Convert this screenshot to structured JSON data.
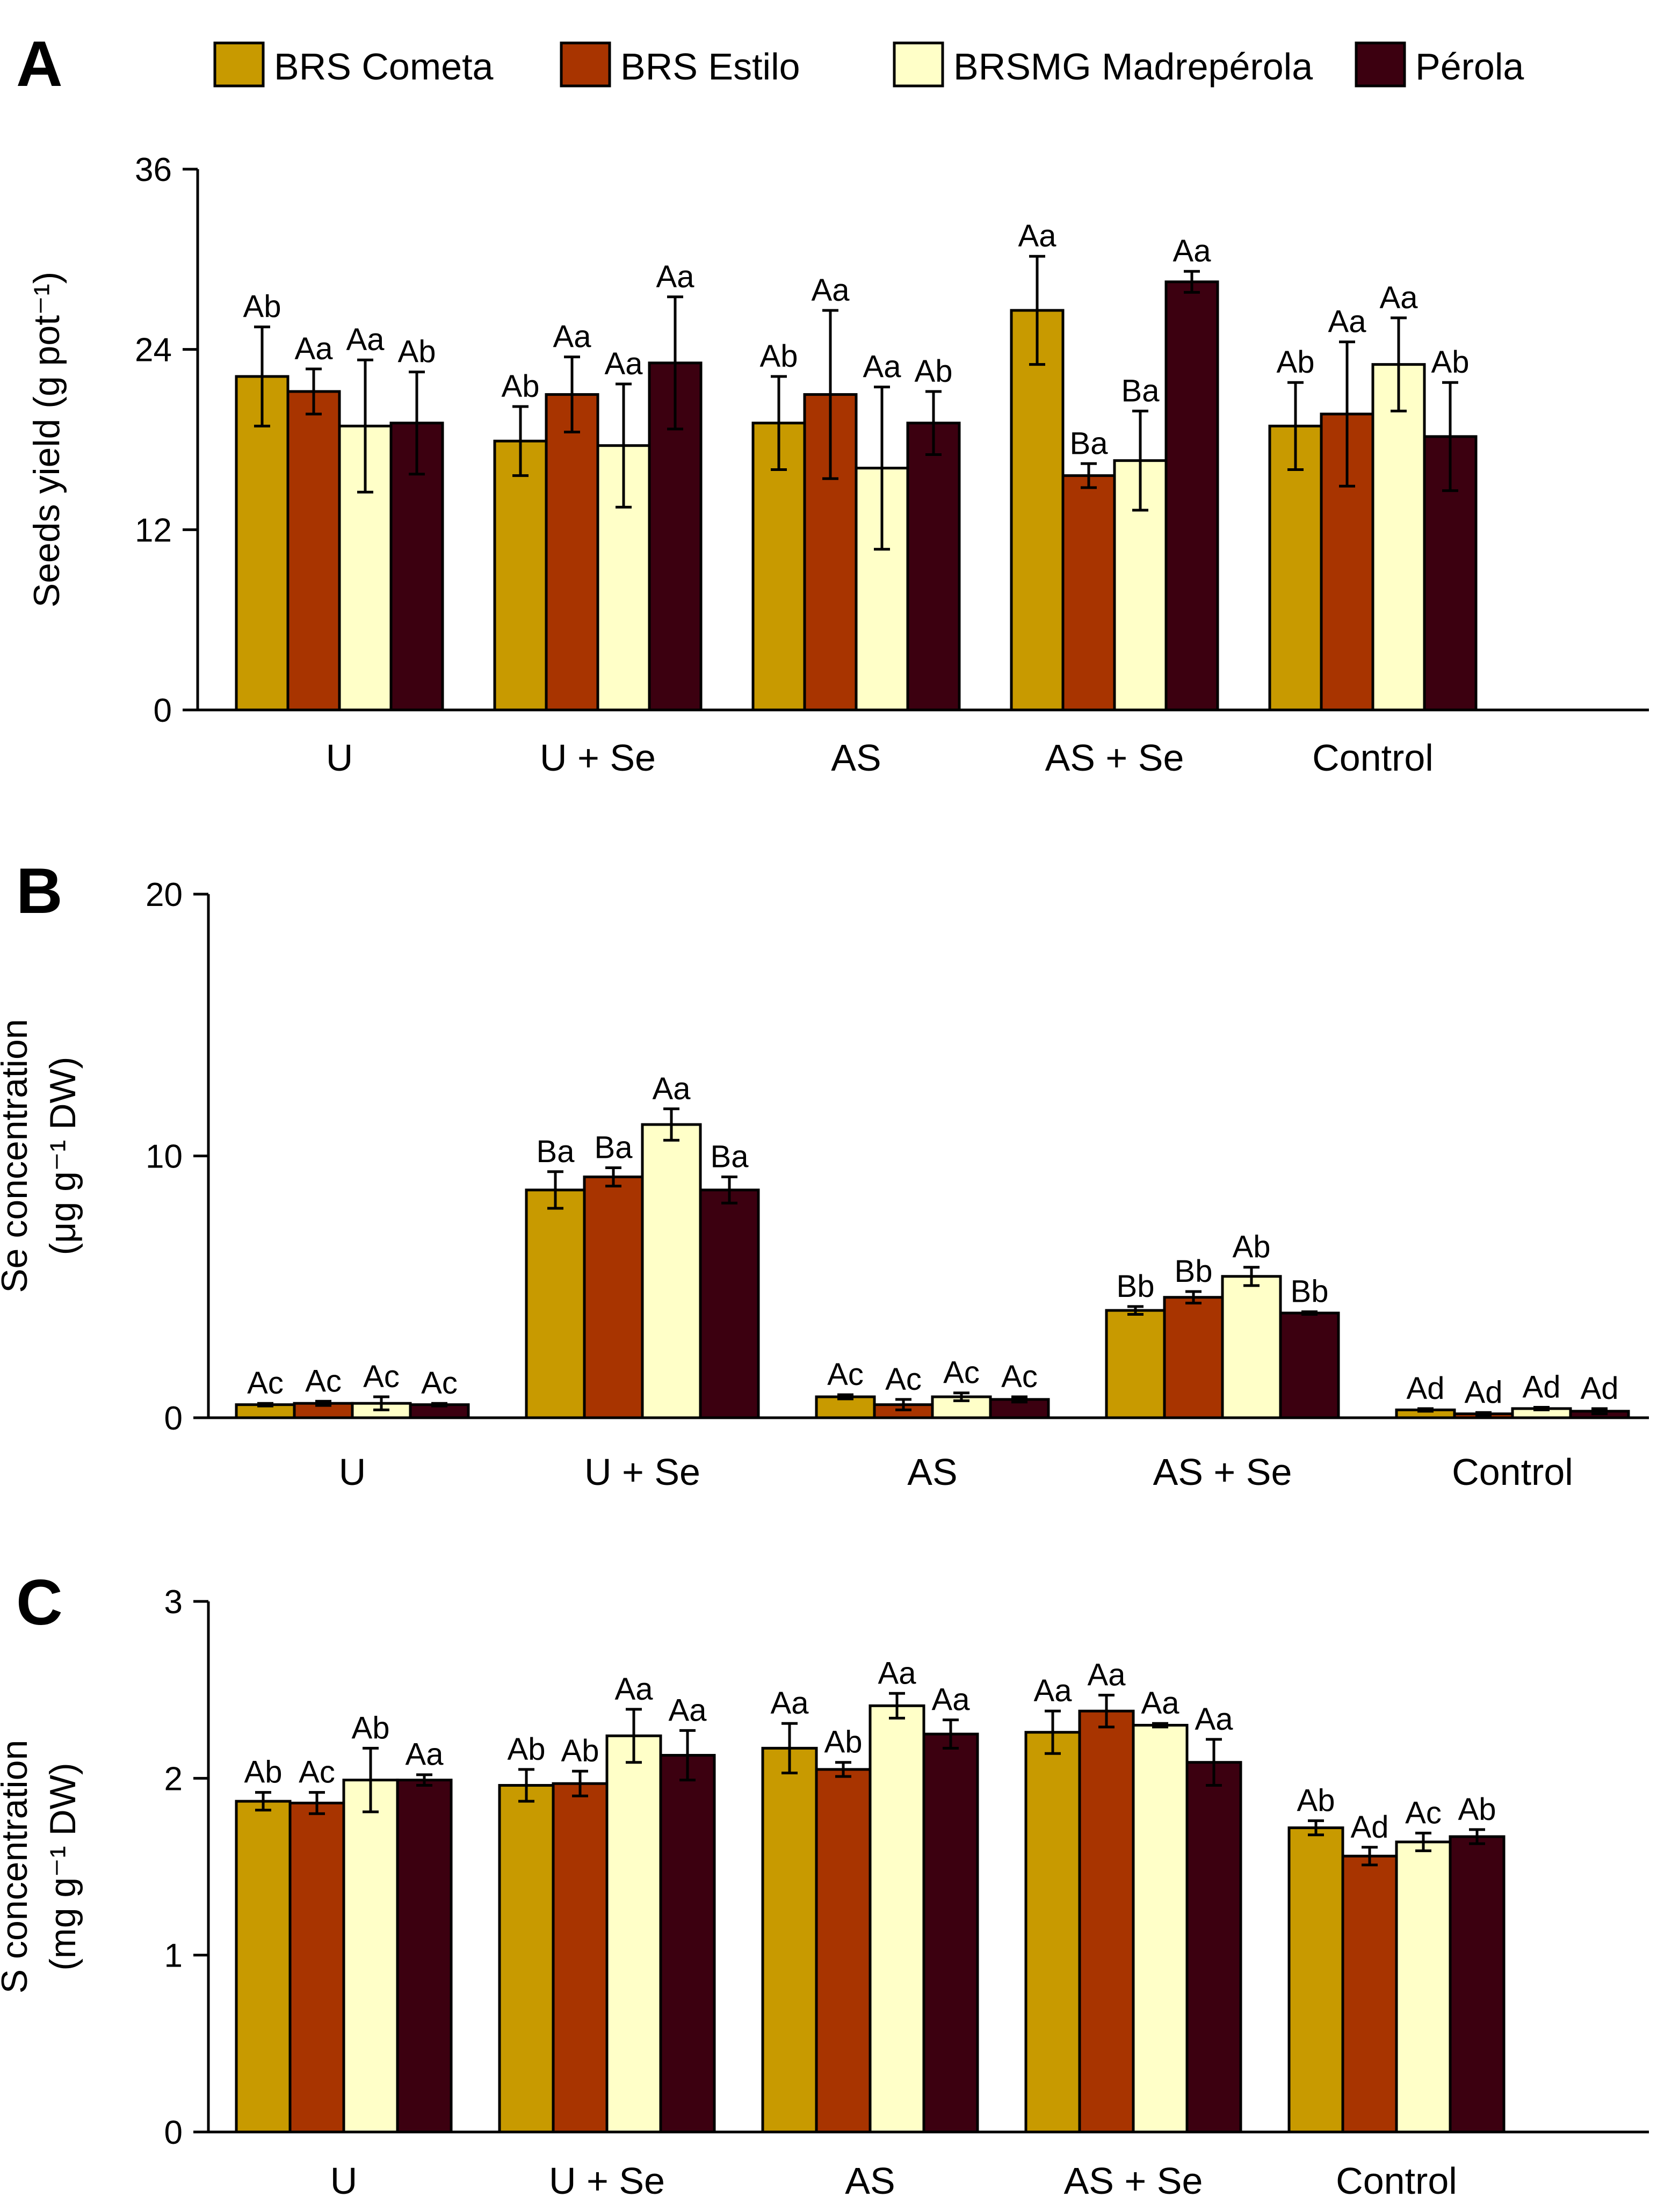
{
  "colors": {
    "BRS Cometa": "#c89a00",
    "BRS Estilo": "#a83400",
    "BRSMG Madrepérola": "#ffffc8",
    "Pérola": "#3c0010"
  },
  "legend": [
    "BRS Cometa",
    "BRS Estilo",
    "BRSMG Madrepérola",
    "Pérola"
  ],
  "chart_data": [
    {
      "type": "bar",
      "panel": "A",
      "ylabel": "Seeds yield (g pot⁻¹)",
      "ylim": [
        0,
        36
      ],
      "yticks": [
        0,
        12,
        24,
        36
      ],
      "categories": [
        "U",
        "U + Se",
        "AS",
        "AS + Se",
        "Control"
      ],
      "series": [
        {
          "name": "BRS Cometa",
          "values": [
            22.2,
            17.9,
            19.1,
            26.6,
            18.9
          ],
          "errors": [
            3.3,
            2.3,
            3.1,
            3.6,
            2.9
          ],
          "labels": [
            "Ab",
            "Ab",
            "Ab",
            "Aa",
            "Ab"
          ]
        },
        {
          "name": "BRS Estilo",
          "values": [
            21.2,
            21.0,
            21.0,
            15.6,
            19.7
          ],
          "errors": [
            1.5,
            2.5,
            5.6,
            0.8,
            4.8
          ],
          "labels": [
            "Aa",
            "Aa",
            "Aa",
            "Ba",
            "Aa"
          ]
        },
        {
          "name": "BRSMG Madrepérola",
          "values": [
            18.9,
            17.6,
            16.1,
            16.6,
            23.0
          ],
          "errors": [
            4.4,
            4.1,
            5.4,
            3.3,
            3.1
          ],
          "labels": [
            "Aa",
            "Aa",
            "Aa",
            "Ba",
            "Aa"
          ]
        },
        {
          "name": "Pérola",
          "values": [
            19.1,
            23.1,
            19.1,
            28.5,
            18.2
          ],
          "errors": [
            3.4,
            4.4,
            2.1,
            0.7,
            3.6
          ],
          "labels": [
            "Ab",
            "Aa",
            "Ab",
            "Aa",
            "Ab"
          ]
        }
      ]
    },
    {
      "type": "bar",
      "panel": "B",
      "ylabel": "Se concentration (μg g⁻¹ DW)",
      "ylim": [
        0,
        20
      ],
      "yticks": [
        0,
        10,
        20
      ],
      "categories": [
        "U",
        "U + Se",
        "AS",
        "AS + Se",
        "Control"
      ],
      "series": [
        {
          "name": "BRS Cometa",
          "values": [
            0.5,
            8.7,
            0.8,
            4.1,
            0.3
          ],
          "errors": [
            0.05,
            0.7,
            0.08,
            0.15,
            0.05
          ],
          "labels": [
            "Ac",
            "Ba",
            "Ac",
            "Bb",
            "Ad"
          ]
        },
        {
          "name": "BRS Estilo",
          "values": [
            0.55,
            9.2,
            0.5,
            4.6,
            0.15
          ],
          "errors": [
            0.08,
            0.35,
            0.2,
            0.22,
            0.05
          ],
          "labels": [
            "Ac",
            "Ba",
            "Ac",
            "Bb",
            "Ad"
          ]
        },
        {
          "name": "BRSMG Madrepérola",
          "values": [
            0.55,
            11.2,
            0.8,
            5.4,
            0.35
          ],
          "errors": [
            0.25,
            0.6,
            0.15,
            0.35,
            0.05
          ],
          "labels": [
            "Ac",
            "Aa",
            "Ac",
            "Ab",
            "Ad"
          ]
        },
        {
          "name": "Pérola",
          "values": [
            0.5,
            8.7,
            0.7,
            4.0,
            0.25
          ],
          "errors": [
            0.05,
            0.5,
            0.1,
            0.05,
            0.1
          ],
          "labels": [
            "Ac",
            "Ba",
            "Ac",
            "Bb",
            "Ad"
          ]
        }
      ]
    },
    {
      "type": "bar",
      "panel": "C",
      "ylabel": "S concentration (mg g⁻¹ DW)",
      "ylim": [
        0,
        3
      ],
      "yticks": [
        0,
        1,
        2,
        3
      ],
      "categories": [
        "U",
        "U + Se",
        "AS",
        "AS + Se",
        "Control"
      ],
      "series": [
        {
          "name": "BRS Cometa",
          "values": [
            1.87,
            1.96,
            2.17,
            2.26,
            1.72
          ],
          "errors": [
            0.05,
            0.09,
            0.14,
            0.12,
            0.04
          ],
          "labels": [
            "Ab",
            "Ab",
            "Aa",
            "Aa",
            "Ab"
          ]
        },
        {
          "name": "BRS Estilo",
          "values": [
            1.86,
            1.97,
            2.05,
            2.38,
            1.56
          ],
          "errors": [
            0.06,
            0.07,
            0.04,
            0.09,
            0.05
          ],
          "labels": [
            "Ac",
            "Ab",
            "Ab",
            "Aa",
            "Ad"
          ]
        },
        {
          "name": "BRSMG Madrepérola",
          "values": [
            1.99,
            2.24,
            2.41,
            2.3,
            1.64
          ],
          "errors": [
            0.18,
            0.15,
            0.07,
            0.01,
            0.05
          ],
          "labels": [
            "Ab",
            "Aa",
            "Aa",
            "Aa",
            "Ac"
          ]
        },
        {
          "name": "Pérola",
          "values": [
            1.99,
            2.13,
            2.25,
            2.09,
            1.67
          ],
          "errors": [
            0.03,
            0.14,
            0.08,
            0.13,
            0.04
          ],
          "labels": [
            "Aa",
            "Aa",
            "Aa",
            "Aa",
            "Ab"
          ]
        }
      ]
    }
  ]
}
